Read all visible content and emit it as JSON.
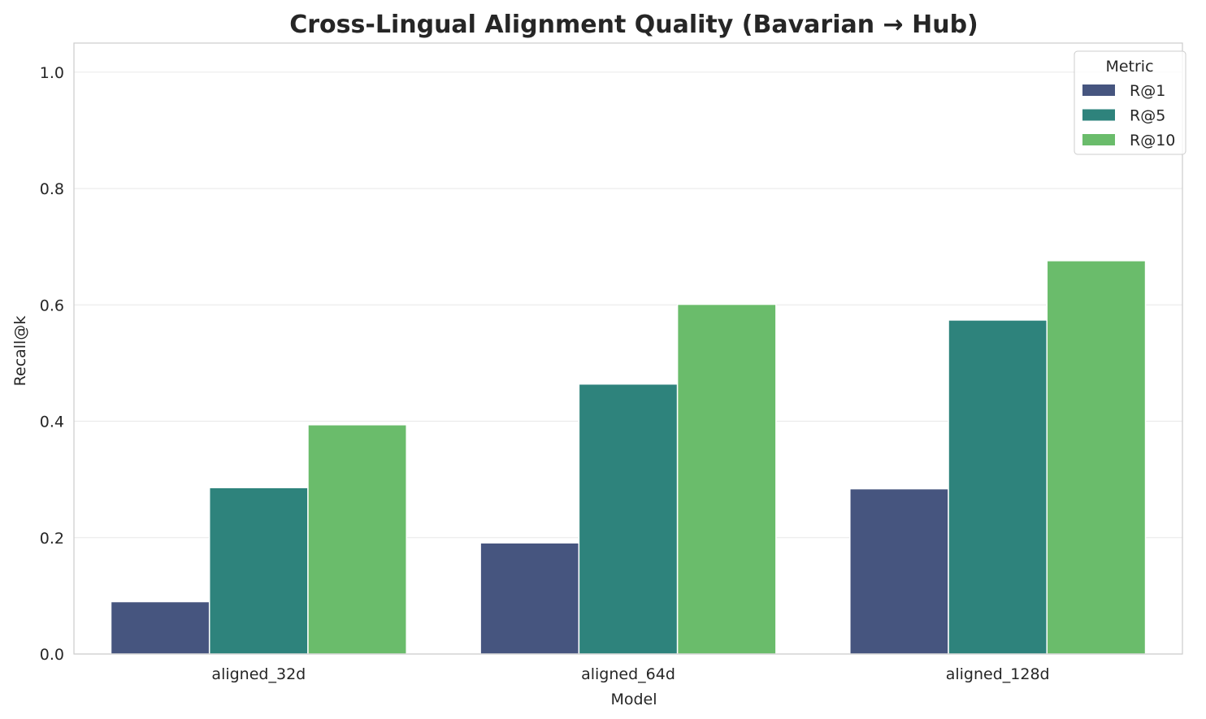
{
  "chart_data": {
    "type": "bar",
    "title": "Cross-Lingual Alignment Quality (Bavarian → Hub)",
    "xlabel": "Model",
    "ylabel": "Recall@k",
    "categories": [
      "aligned_32d",
      "aligned_64d",
      "aligned_128d"
    ],
    "series": [
      {
        "name": "R@1",
        "values": [
          0.09,
          0.191,
          0.284
        ],
        "color": "#46557f"
      },
      {
        "name": "R@5",
        "values": [
          0.286,
          0.464,
          0.574
        ],
        "color": "#2e837c"
      },
      {
        "name": "R@10",
        "values": [
          0.394,
          0.601,
          0.676
        ],
        "color": "#6abc6b"
      }
    ],
    "ylim": [
      0,
      1.05
    ],
    "yticks": [
      "0.0",
      "0.2",
      "0.4",
      "0.6",
      "0.8",
      "1.0"
    ],
    "grid": "horizontal",
    "legend": {
      "title": "Metric",
      "placement": "top-right"
    }
  }
}
